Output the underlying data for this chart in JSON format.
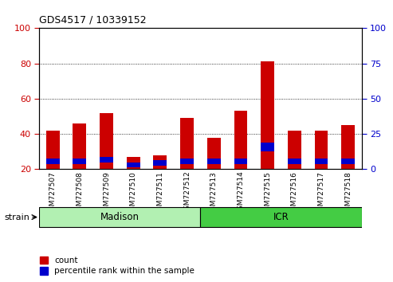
{
  "title": "GDS4517 / 10339152",
  "samples": [
    "GSM727507",
    "GSM727508",
    "GSM727509",
    "GSM727510",
    "GSM727511",
    "GSM727512",
    "GSM727513",
    "GSM727514",
    "GSM727515",
    "GSM727516",
    "GSM727517",
    "GSM727518"
  ],
  "count_values": [
    42,
    46,
    52,
    27,
    28,
    49,
    38,
    53,
    81,
    42,
    42,
    45
  ],
  "percentile_values": [
    3,
    3,
    3,
    3,
    3,
    3,
    3,
    3,
    5,
    3,
    3,
    3
  ],
  "percentile_bottom": [
    23,
    23,
    24,
    21,
    22,
    23,
    23,
    23,
    30,
    23,
    23,
    23
  ],
  "bar_bottom": 20,
  "groups": [
    {
      "label": "Madison",
      "start": 0,
      "end": 5,
      "color": "#b2f0b2",
      "edgecolor": "#000000"
    },
    {
      "label": "ICR",
      "start": 6,
      "end": 11,
      "color": "#44cc44",
      "edgecolor": "#000000"
    }
  ],
  "group_label": "strain",
  "ylim_left": [
    20,
    100
  ],
  "ylim_right": [
    0,
    100
  ],
  "yticks_left": [
    20,
    40,
    60,
    80,
    100
  ],
  "yticks_right": [
    0,
    25,
    50,
    75,
    100
  ],
  "count_color": "#cc0000",
  "percentile_color": "#0000cc",
  "grid_color": "#000000",
  "plot_bg_color": "#ffffff",
  "xticklabel_bg_color": "#d8d8d8",
  "left_tick_color": "#cc0000",
  "right_tick_color": "#0000cc",
  "bar_width": 0.5,
  "legend_items": [
    "count",
    "percentile rank within the sample"
  ]
}
